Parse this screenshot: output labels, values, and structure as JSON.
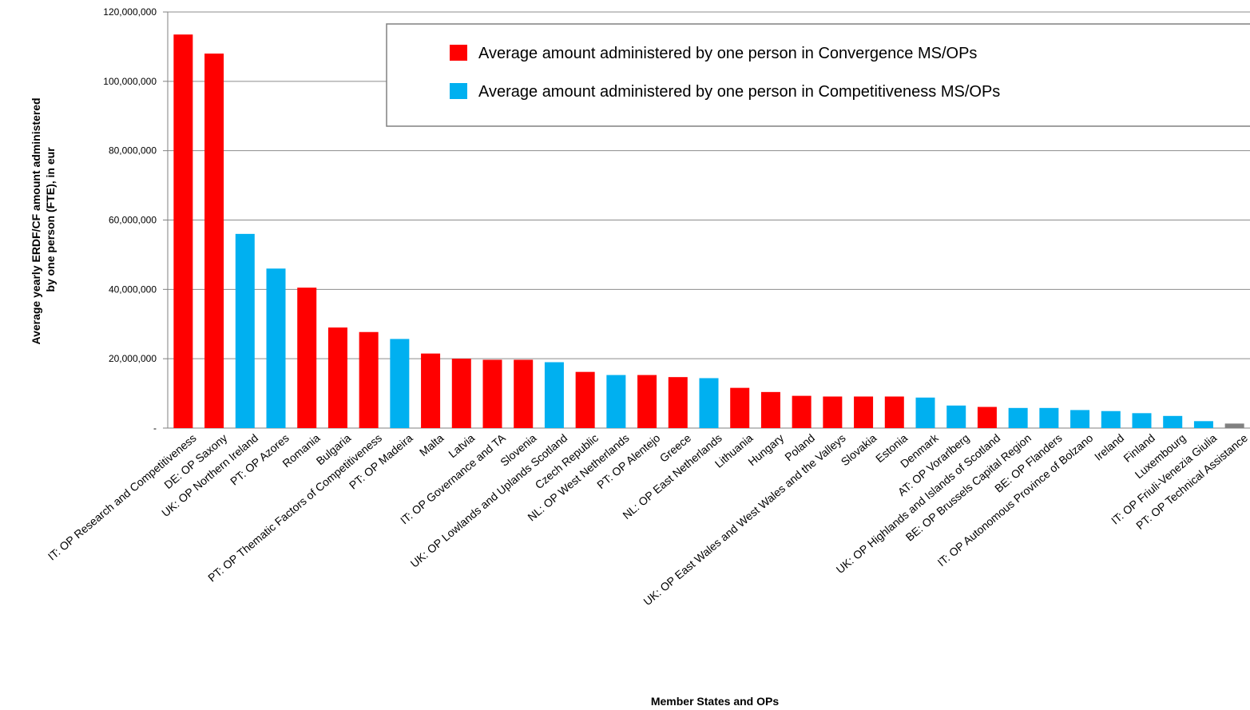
{
  "chart_data": {
    "type": "bar",
    "title": "",
    "xlabel": "Member States and OPs",
    "ylabel_lines": [
      "Average yearly ERDF/CF amount administered",
      "by one person (FTE), in eur"
    ],
    "ylim": [
      0,
      120000000
    ],
    "yticks": [
      {
        "value": 0,
        "label": "-"
      },
      {
        "value": 20000000,
        "label": "20,000,000"
      },
      {
        "value": 40000000,
        "label": "40,000,000"
      },
      {
        "value": 60000000,
        "label": "60,000,000"
      },
      {
        "value": 80000000,
        "label": "80,000,000"
      },
      {
        "value": 100000000,
        "label": "100,000,000"
      },
      {
        "value": 120000000,
        "label": "120,000,000"
      }
    ],
    "grid": true,
    "legend_position": "top-right",
    "colors": {
      "convergence": "#ff0000",
      "competitiveness": "#00b0f0",
      "other": "#808080"
    },
    "legend": [
      {
        "key": "convergence",
        "label": "Average amount administered by one person in Convergence MS/OPs"
      },
      {
        "key": "competitiveness",
        "label": "Average amount administered by one person in Competitiveness MS/OPs"
      }
    ],
    "categories": [
      "IT: OP Research and Competitiveness",
      "DE: OP Saxony",
      "UK: OP Northern Ireland",
      "PT: OP Azores",
      "Romania",
      "Bulgaria",
      "PT: OP Thematic Factors of Competitiveness",
      "PT: OP Madeira",
      "Malta",
      "Latvia",
      "IT: OP Governance and TA",
      "Slovenia",
      "UK: OP Lowlands and Uplands Scotland",
      "Czech Republic",
      "NL: OP West Netherlands",
      "PT: OP Alentejo",
      "Greece",
      "NL: OP East Netherlands",
      "Lithuania",
      "Hungary",
      "Poland",
      "UK: OP East Wales and West Wales and the Valleys",
      "Slovakia",
      "Estonia",
      "Denmark",
      "AT: OP Vorarlberg",
      "UK: OP Highlands and Islands of Scotland",
      "BE: OP Brussels Capital Region",
      "BE: OP Flanders",
      "IT: OP Autonomous Province of Bolzano",
      "Ireland",
      "Finland",
      "Luxembourg",
      "IT: OP Friuli-Venezia Giulia",
      "PT: OP Technical Assistance"
    ],
    "values": [
      113500000,
      108000000,
      56000000,
      46000000,
      40500000,
      29000000,
      27700000,
      25700000,
      21500000,
      20000000,
      19700000,
      19700000,
      19000000,
      16200000,
      15300000,
      15300000,
      14700000,
      14400000,
      11600000,
      10400000,
      9300000,
      9100000,
      9100000,
      9100000,
      8800000,
      6500000,
      6100000,
      5800000,
      5800000,
      5200000,
      4900000,
      4300000,
      3500000,
      2000000,
      1300000
    ],
    "groups": [
      "convergence",
      "convergence",
      "competitiveness",
      "competitiveness",
      "convergence",
      "convergence",
      "convergence",
      "competitiveness",
      "convergence",
      "convergence",
      "convergence",
      "convergence",
      "competitiveness",
      "convergence",
      "competitiveness",
      "convergence",
      "convergence",
      "competitiveness",
      "convergence",
      "convergence",
      "convergence",
      "convergence",
      "convergence",
      "convergence",
      "competitiveness",
      "competitiveness",
      "convergence",
      "competitiveness",
      "competitiveness",
      "competitiveness",
      "competitiveness",
      "competitiveness",
      "competitiveness",
      "competitiveness",
      "other"
    ]
  }
}
